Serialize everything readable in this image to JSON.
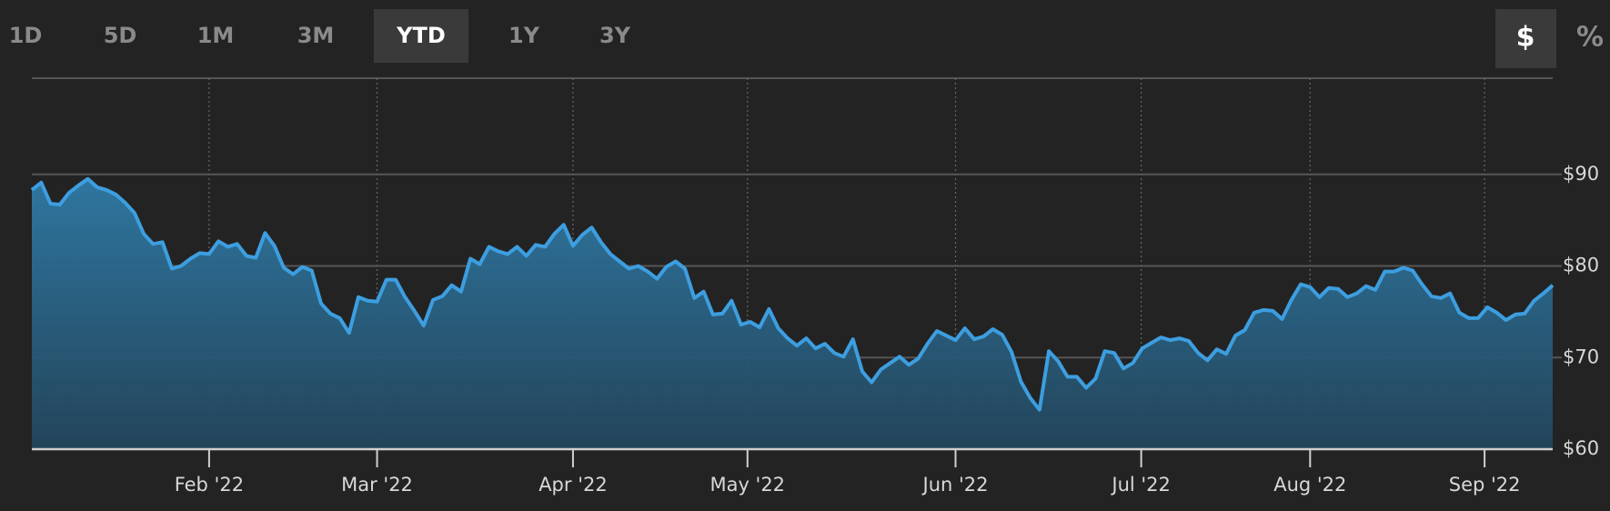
{
  "toolbar": {
    "ranges": [
      "1D",
      "5D",
      "1M",
      "3M",
      "YTD",
      "1Y",
      "3Y"
    ],
    "active_range": 4,
    "units": [
      "$",
      "%"
    ],
    "active_unit": 0
  },
  "chart_data": {
    "type": "area",
    "color": "#3d9ee0",
    "grid": true,
    "values": [
      88.3,
      89.1,
      86.8,
      86.7,
      88.0,
      88.8,
      89.5,
      88.6,
      88.3,
      87.8,
      86.9,
      85.8,
      83.5,
      82.4,
      82.6,
      79.7,
      80.0,
      80.8,
      81.4,
      81.3,
      82.7,
      82.1,
      82.4,
      81.1,
      80.9,
      83.6,
      82.2,
      79.8,
      79.1,
      79.9,
      79.5,
      75.9,
      74.8,
      74.3,
      72.7,
      76.6,
      76.2,
      76.1,
      78.5,
      78.5,
      76.6,
      75.1,
      73.5,
      76.3,
      76.7,
      77.9,
      77.2,
      80.8,
      80.2,
      82.1,
      81.6,
      81.3,
      82.1,
      81.1,
      82.3,
      82.1,
      83.5,
      84.5,
      82.2,
      83.4,
      84.2,
      82.6,
      81.3,
      80.5,
      79.7,
      80.0,
      79.4,
      78.6,
      79.9,
      80.5,
      79.7,
      76.5,
      77.2,
      74.7,
      74.8,
      76.2,
      73.6,
      73.9,
      73.3,
      75.3,
      73.2,
      72.1,
      71.3,
      72.1,
      71.0,
      71.5,
      70.5,
      70.1,
      72.0,
      68.5,
      67.3,
      68.7,
      69.4,
      70.1,
      69.2,
      69.9,
      71.5,
      72.9,
      72.4,
      71.9,
      73.2,
      72.0,
      72.3,
      73.1,
      72.5,
      70.6,
      67.4,
      65.6,
      64.3,
      70.7,
      69.6,
      67.9,
      67.9,
      66.7,
      67.7,
      70.7,
      70.5,
      68.8,
      69.4,
      71.0,
      71.6,
      72.2,
      71.9,
      72.1,
      71.8,
      70.5,
      69.7,
      70.9,
      70.4,
      72.4,
      73.0,
      74.9,
      75.2,
      75.1,
      74.2,
      76.3,
      78.0,
      77.7,
      76.6,
      77.6,
      77.5,
      76.6,
      77.0,
      77.8,
      77.4,
      79.4,
      79.4,
      79.8,
      79.5,
      78.0,
      76.7,
      76.5,
      77.0,
      74.9,
      74.3,
      74.3,
      75.5,
      74.9,
      74.1,
      74.7,
      74.8,
      76.2,
      77.0,
      77.9
    ],
    "ylim": [
      60,
      100.5
    ],
    "yticks": [
      {
        "value": 60,
        "label": "$60"
      },
      {
        "value": 70,
        "label": "$70"
      },
      {
        "value": 80,
        "label": "$80"
      },
      {
        "value": 90,
        "label": "$90"
      }
    ],
    "xticks": [
      {
        "value": 19,
        "label": "Feb '22"
      },
      {
        "value": 37,
        "label": "Mar '22"
      },
      {
        "value": 58,
        "label": "Apr '22"
      },
      {
        "value": 76.7,
        "label": "May '22"
      },
      {
        "value": 99,
        "label": "Jun '22"
      },
      {
        "value": 118.9,
        "label": "Jul '22"
      },
      {
        "value": 137,
        "label": "Aug '22"
      },
      {
        "value": 155.7,
        "label": "Sep '22"
      }
    ]
  }
}
